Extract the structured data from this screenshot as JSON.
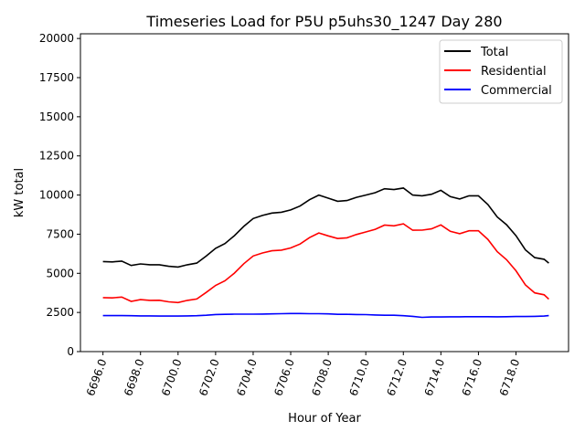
{
  "chart_data": {
    "type": "line",
    "title": "Timeseries Load for P5U p5uhs30_1247  Day 280",
    "xlabel": "Hour of Year",
    "ylabel": "kW total",
    "xlim": [
      6694.8,
      6720.8
    ],
    "ylim": [
      0,
      20300
    ],
    "grid": false,
    "legend_position": "top-right",
    "x_ticks": [
      "6696.0",
      "6698.0",
      "6700.0",
      "6702.0",
      "6704.0",
      "6706.0",
      "6708.0",
      "6710.0",
      "6712.0",
      "6714.0",
      "6716.0",
      "6718.0"
    ],
    "x_tick_values": [
      6696,
      6698,
      6700,
      6702,
      6704,
      6706,
      6708,
      6710,
      6712,
      6714,
      6716,
      6718
    ],
    "y_ticks": [
      "0",
      "2500",
      "5000",
      "7500",
      "10000",
      "12500",
      "15000",
      "17500",
      "20000"
    ],
    "y_tick_values": [
      0,
      2500,
      5000,
      7500,
      10000,
      12500,
      15000,
      17500,
      20000
    ],
    "x": [
      6696,
      6696.5,
      6697,
      6697.5,
      6698,
      6698.5,
      6699,
      6699.5,
      6700,
      6700.5,
      6701,
      6701.5,
      6702,
      6702.5,
      6703,
      6703.5,
      6704,
      6704.5,
      6705,
      6705.5,
      6706,
      6706.5,
      6707,
      6707.5,
      6708,
      6708.5,
      6709,
      6709.5,
      6710,
      6710.5,
      6711,
      6711.5,
      6712,
      6712.5,
      6713,
      6713.5,
      6714,
      6714.5,
      6715,
      6715.5,
      6716,
      6716.5,
      6717,
      6717.5,
      6718,
      6718.5,
      6719,
      6719.5,
      6719.75
    ],
    "series": [
      {
        "name": "Total",
        "color": "#000000",
        "values": [
          5750,
          5730,
          5780,
          5500,
          5600,
          5550,
          5550,
          5450,
          5400,
          5550,
          5650,
          6100,
          6600,
          6900,
          7400,
          8000,
          8500,
          8700,
          8850,
          8900,
          9050,
          9300,
          9700,
          10000,
          9800,
          9600,
          9650,
          9850,
          10000,
          10150,
          10400,
          10350,
          10450,
          10000,
          9950,
          10050,
          10300,
          9900,
          9750,
          9950,
          9950,
          9400,
          8600,
          8100,
          7400,
          6500,
          6000,
          5900,
          5650
        ]
      },
      {
        "name": "Residential",
        "color": "#ff0000",
        "values": [
          3450,
          3430,
          3480,
          3210,
          3320,
          3270,
          3280,
          3180,
          3130,
          3270,
          3360,
          3780,
          4230,
          4520,
          5010,
          5610,
          6110,
          6300,
          6440,
          6480,
          6620,
          6870,
          7280,
          7580,
          7390,
          7220,
          7270,
          7480,
          7640,
          7810,
          8080,
          8030,
          8160,
          7750,
          7760,
          7840,
          8090,
          7680,
          7530,
          7720,
          7720,
          7170,
          6380,
          5870,
          5160,
          4260,
          3750,
          3630,
          3350
        ]
      },
      {
        "name": "Commercial",
        "color": "#0000ff",
        "values": [
          2300,
          2300,
          2300,
          2290,
          2280,
          2280,
          2270,
          2270,
          2270,
          2280,
          2290,
          2320,
          2370,
          2380,
          2390,
          2390,
          2390,
          2400,
          2410,
          2420,
          2430,
          2430,
          2420,
          2420,
          2410,
          2380,
          2380,
          2370,
          2360,
          2340,
          2320,
          2320,
          2290,
          2250,
          2190,
          2210,
          2210,
          2220,
          2220,
          2230,
          2230,
          2230,
          2220,
          2230,
          2240,
          2240,
          2250,
          2270,
          2300
        ]
      }
    ]
  }
}
